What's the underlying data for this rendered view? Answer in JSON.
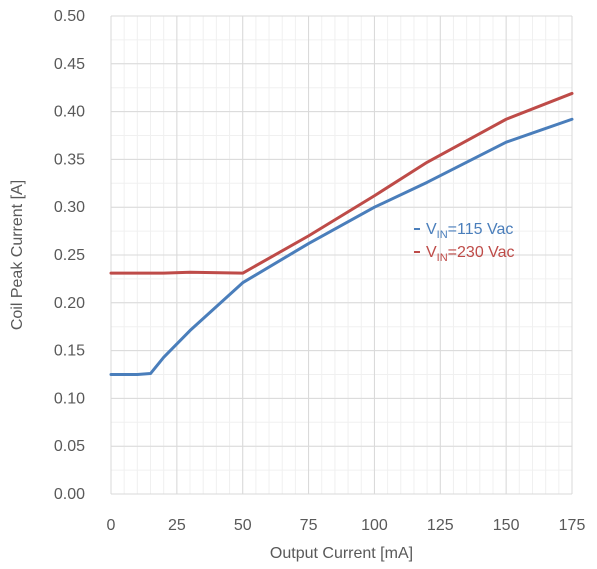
{
  "chart_data": {
    "type": "line",
    "title": "",
    "xlabel": "Output Current [mA]",
    "ylabel": "Coil Peak Current  [A]",
    "xlim": [
      0,
      175
    ],
    "ylim": [
      0,
      0.5
    ],
    "x_ticks": [
      "0",
      "25",
      "50",
      "75",
      "100",
      "125",
      "150",
      "175"
    ],
    "y_ticks": [
      "0.00",
      "0.05",
      "0.10",
      "0.15",
      "0.20",
      "0.25",
      "0.30",
      "0.35",
      "0.40",
      "0.45",
      "0.50"
    ],
    "x_tick_values": [
      0,
      25,
      50,
      75,
      100,
      125,
      150,
      175
    ],
    "y_tick_values": [
      0,
      0.05,
      0.1,
      0.15,
      0.2,
      0.25,
      0.3,
      0.35,
      0.4,
      0.45,
      0.5
    ],
    "x_minor_step": 5,
    "y_minor_step": 0.025,
    "grid": true,
    "legend_position": "right-middle",
    "series": [
      {
        "name": "V_IN=115 Vac",
        "legend_prefix": "V",
        "legend_sub": "IN",
        "legend_suffix": "=115 Vac",
        "color": "#4a7ebb",
        "x": [
          0,
          10,
          15,
          20,
          30,
          40,
          50,
          75,
          100,
          120,
          150,
          175
        ],
        "y": [
          0.125,
          0.125,
          0.126,
          0.143,
          0.171,
          0.196,
          0.221,
          0.262,
          0.3,
          0.326,
          0.368,
          0.392
        ]
      },
      {
        "name": "V_IN=230 Vac",
        "legend_prefix": "V",
        "legend_sub": "IN",
        "legend_suffix": "=230 Vac",
        "color": "#be4b48",
        "x": [
          0,
          20,
          30,
          50,
          75,
          100,
          120,
          150,
          175
        ],
        "y": [
          0.231,
          0.231,
          0.232,
          0.231,
          0.27,
          0.312,
          0.347,
          0.392,
          0.419
        ]
      }
    ]
  }
}
